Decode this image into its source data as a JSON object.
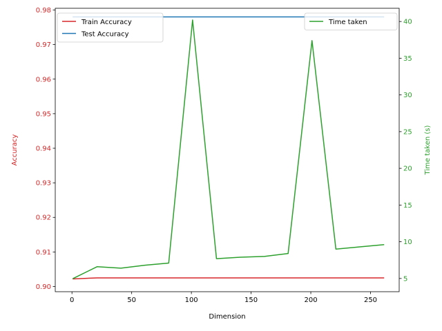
{
  "chart_data": {
    "type": "line",
    "x": [
      1,
      21,
      41,
      61,
      81,
      101,
      121,
      141,
      161,
      181,
      201,
      221,
      241,
      261
    ],
    "xlabel": "Dimension",
    "xlim": [
      -14,
      274
    ],
    "xticks": [
      0,
      50,
      100,
      150,
      200,
      250
    ],
    "left_axis": {
      "ylabel": "Accuracy",
      "ylim": [
        0.8985,
        0.9805
      ],
      "ticks": [
        0.9,
        0.91,
        0.92,
        0.93,
        0.94,
        0.95,
        0.96,
        0.97,
        0.98
      ],
      "tick_labels": [
        "0.90",
        "0.91",
        "0.92",
        "0.93",
        "0.94",
        "0.95",
        "0.96",
        "0.97",
        "0.98"
      ],
      "color": "#d62728"
    },
    "right_axis": {
      "ylabel": "Time taken (s)",
      "ylim": [
        3.2,
        41.8
      ],
      "ticks": [
        5,
        10,
        15,
        20,
        25,
        30,
        35,
        40
      ],
      "tick_labels": [
        "5",
        "10",
        "15",
        "20",
        "25",
        "30",
        "35",
        "40"
      ],
      "color": "#2ca02c"
    },
    "series": [
      {
        "name": "Train Accuracy",
        "axis": "left",
        "color": "#d62728",
        "values": [
          0.9022,
          0.9025,
          0.9025,
          0.9025,
          0.9025,
          0.9025,
          0.9025,
          0.9025,
          0.9025,
          0.9025,
          0.9025,
          0.9025,
          0.9025,
          0.9025
        ]
      },
      {
        "name": "Test Accuracy",
        "axis": "left",
        "color": "#1f77b4",
        "values": [
          0.978,
          0.978,
          0.978,
          0.978,
          0.978,
          0.978,
          0.978,
          0.978,
          0.978,
          0.978,
          0.978,
          0.978,
          0.978,
          0.978
        ]
      },
      {
        "name": "Time taken",
        "axis": "right",
        "color": "#2ca02c",
        "values": [
          5.0,
          6.6,
          6.4,
          6.8,
          7.1,
          40.2,
          7.7,
          7.9,
          8.0,
          8.4,
          37.4,
          9.0,
          9.3,
          9.6
        ]
      }
    ],
    "legends": {
      "left": {
        "placement": "upper left",
        "entries": [
          "Train Accuracy",
          "Test Accuracy"
        ]
      },
      "right": {
        "placement": "upper right",
        "entries": [
          "Time taken"
        ]
      }
    },
    "grid": false
  }
}
